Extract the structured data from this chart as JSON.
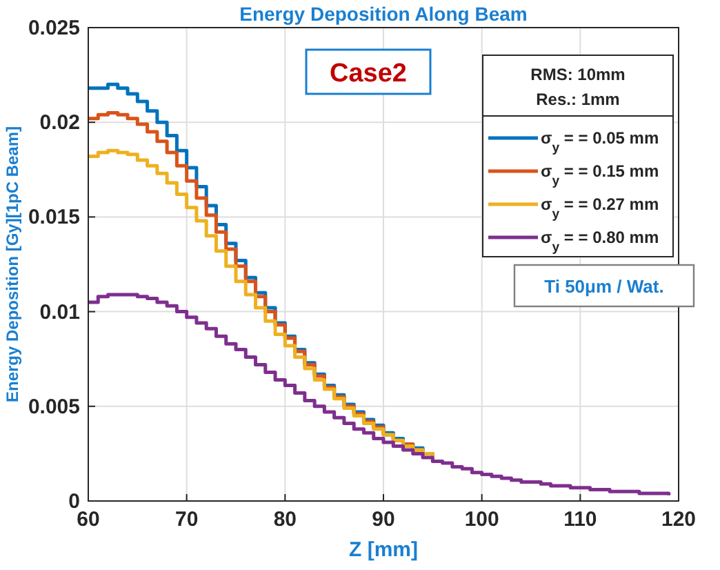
{
  "chart_data": {
    "type": "step",
    "title": "Energy Deposition Along Beam",
    "xlabel": "Z [mm]",
    "ylabel": "Energy Deposition [Gy][1pC Beam]",
    "legend_title": "RMS: 10mm\nRes.: 1mm",
    "annotations": [
      "Case2",
      "Ti 50μm / Wat."
    ],
    "x": [
      60,
      61,
      62,
      63,
      64,
      65,
      66,
      67,
      68,
      69,
      70,
      71,
      72,
      73,
      74,
      75,
      76,
      77,
      78,
      79,
      80,
      81,
      82,
      83,
      84,
      85,
      86,
      87,
      88,
      89,
      90,
      91,
      92,
      93,
      94,
      95,
      96,
      97,
      98,
      99,
      100,
      101,
      102,
      103,
      104,
      105,
      106,
      107,
      108,
      109,
      110,
      111,
      112,
      113,
      114,
      115,
      116,
      117,
      118,
      119
    ],
    "series": [
      {
        "name": "σ$_{y}$ =  = 0.05 mm",
        "color": "#0072bd",
        "values": [
          0.0218,
          0.0218,
          0.022,
          0.0218,
          0.0215,
          0.0211,
          0.0206,
          0.02,
          0.0193,
          0.0185,
          0.0176,
          0.0166,
          0.0156,
          0.0146,
          0.0136,
          0.0127,
          0.0118,
          0.011,
          0.0102,
          0.0094,
          0.0087,
          0.008,
          0.0073,
          0.0067,
          0.0061,
          0.0056,
          0.0051,
          0.0047,
          0.0043,
          0.004,
          0.0036,
          0.0033,
          0.003,
          0.0028,
          0.0025,
          0.0023,
          null,
          null,
          null,
          null,
          null,
          null,
          null,
          null,
          null,
          null,
          null,
          null,
          null,
          null,
          null,
          null,
          null,
          null,
          null,
          null,
          null,
          null,
          null,
          null
        ]
      },
      {
        "name": "σ$_{y}$ =  = 0.15 mm",
        "color": "#d95319",
        "values": [
          0.0202,
          0.0204,
          0.0205,
          0.0204,
          0.0202,
          0.0199,
          0.0195,
          0.019,
          0.0184,
          0.0177,
          0.0169,
          0.016,
          0.0151,
          0.0142,
          0.0133,
          0.0124,
          0.0116,
          0.0108,
          0.01,
          0.0093,
          0.0086,
          0.0079,
          0.0072,
          0.0066,
          0.006,
          0.0055,
          0.005,
          0.0046,
          0.0042,
          0.0039,
          0.0035,
          0.0032,
          0.003,
          0.0027,
          0.0025,
          0.0023,
          null,
          null,
          null,
          null,
          null,
          null,
          null,
          null,
          null,
          null,
          null,
          null,
          null,
          null,
          null,
          null,
          null,
          null,
          null,
          null,
          null,
          null,
          null,
          null
        ]
      },
      {
        "name": "σ$_{y}$ =  = 0.27 mm",
        "color": "#edb120",
        "values": [
          0.0182,
          0.0184,
          0.0185,
          0.0184,
          0.0183,
          0.018,
          0.0177,
          0.0173,
          0.0168,
          0.0162,
          0.0155,
          0.0148,
          0.014,
          0.0132,
          0.0124,
          0.0116,
          0.0109,
          0.0102,
          0.0095,
          0.0088,
          0.0082,
          0.0076,
          0.007,
          0.0064,
          0.0059,
          0.0054,
          0.0049,
          0.0045,
          0.0041,
          0.0038,
          0.0035,
          0.0032,
          0.0029,
          0.0027,
          0.0025,
          0.0023,
          null,
          null,
          null,
          null,
          null,
          null,
          null,
          null,
          null,
          null,
          null,
          null,
          null,
          null,
          null,
          null,
          null,
          null,
          null,
          null,
          null,
          null,
          null,
          null
        ]
      },
      {
        "name": "σ$_{y}$ =  = 0.80 mm",
        "color": "#7e2f8e",
        "values": [
          0.0105,
          0.0108,
          0.0109,
          0.0109,
          0.0109,
          0.0108,
          0.0107,
          0.0105,
          0.0103,
          0.01,
          0.0097,
          0.0094,
          0.0091,
          0.0087,
          0.0083,
          0.008,
          0.0076,
          0.0072,
          0.0068,
          0.0064,
          0.0061,
          0.0057,
          0.0053,
          0.005,
          0.0047,
          0.0044,
          0.0041,
          0.0038,
          0.0036,
          0.0033,
          0.0031,
          0.0029,
          0.0027,
          0.0025,
          0.0023,
          0.0021,
          0.002,
          0.0018,
          0.0017,
          0.0015,
          0.0014,
          0.0013,
          0.0012,
          0.0011,
          0.001,
          0.001,
          0.0009,
          0.0008,
          0.0008,
          0.0007,
          0.0007,
          0.0006,
          0.0006,
          0.0005,
          0.0005,
          0.0005,
          0.0004,
          0.0004,
          0.0004,
          0.0003
        ]
      }
    ],
    "xlim": [
      60,
      120
    ],
    "xticks": [
      60,
      70,
      80,
      90,
      100,
      110,
      120
    ],
    "ylim": [
      0,
      0.025
    ],
    "yticks": [
      0,
      0.005,
      0.01,
      0.015,
      0.02,
      0.025
    ],
    "grid": true,
    "legend": "top right",
    "line_style": "solid"
  }
}
